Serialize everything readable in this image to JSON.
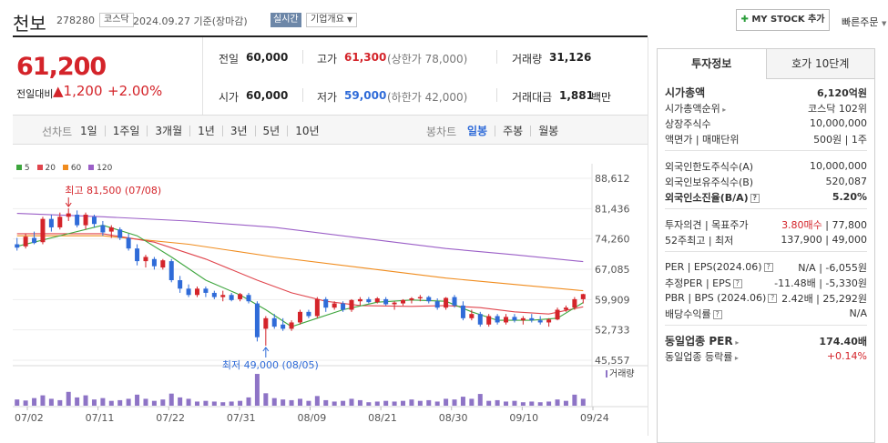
{
  "header": {
    "name": "천보",
    "code": "278280",
    "market_badge": "코스닥",
    "date_text": "2024.09.27  기준(장마감)",
    "live_badge": "실시간",
    "company_info": "기업개요",
    "mystock_label": "MY STOCK 추가",
    "quick_order": "빠른주문"
  },
  "price": {
    "current": "61,200",
    "diff_label": "전일대비",
    "diff_value": "1,200",
    "diff_pct": "+2.00%"
  },
  "summary": {
    "prev_label": "전일",
    "prev_value": "60,000",
    "high_label": "고가",
    "high_value": "61,300",
    "high_limit": "(상한가 78,000)",
    "volume_label": "거래량",
    "volume_value": "31,126",
    "open_label": "시가",
    "open_value": "60,000",
    "low_label": "저가",
    "low_value": "59,000",
    "low_limit": "(하한가 42,000)",
    "amount_label": "거래대금",
    "amount_value": "1,881",
    "amount_unit": "백만"
  },
  "period_tabs": {
    "line_label": "선차트",
    "items": [
      "1일",
      "1주일",
      "3개월",
      "1년",
      "3년",
      "5년",
      "10년"
    ],
    "candle_label": "봉차트",
    "candle_items": [
      "일봉",
      "주봉",
      "월봉"
    ],
    "candle_active": "일봉"
  },
  "legend": [
    "5",
    "20",
    "60",
    "120"
  ],
  "colors": {
    "up": "#d4242a",
    "down": "#2f6bd8",
    "ma5": "#3da53d",
    "ma20": "#e0454d",
    "ma60": "#f08c1e",
    "ma120": "#9b5fc7",
    "volume": "#8e74c6"
  },
  "chart_data": {
    "type": "candlestick",
    "y_ticks": [
      "88,612",
      "81,436",
      "74,260",
      "67,085",
      "59,909",
      "52,733",
      "45,557"
    ],
    "ylim": [
      45557,
      88612
    ],
    "x_ticks": [
      "07/02",
      "07/11",
      "07/22",
      "07/31",
      "08/09",
      "08/21",
      "08/30",
      "09/10",
      "09/24"
    ],
    "volume_label": "거래량",
    "high_annotation": "최고 81,500 (07/08)",
    "low_annotation": "최저 49,000 (08/05)",
    "candles": [
      {
        "o": 73000,
        "h": 74500,
        "l": 71500,
        "c": 72200
      },
      {
        "o": 72500,
        "h": 75500,
        "l": 72000,
        "c": 74800
      },
      {
        "o": 74500,
        "h": 76000,
        "l": 73000,
        "c": 73300
      },
      {
        "o": 73500,
        "h": 79500,
        "l": 73000,
        "c": 79000
      },
      {
        "o": 79000,
        "h": 80000,
        "l": 76000,
        "c": 77000
      },
      {
        "o": 77000,
        "h": 80500,
        "l": 76500,
        "c": 79500
      },
      {
        "o": 79500,
        "h": 81500,
        "l": 78500,
        "c": 80300
      },
      {
        "o": 80000,
        "h": 81000,
        "l": 77000,
        "c": 77500
      },
      {
        "o": 77500,
        "h": 80500,
        "l": 76500,
        "c": 80000
      },
      {
        "o": 79500,
        "h": 80000,
        "l": 77000,
        "c": 77800
      },
      {
        "o": 77500,
        "h": 78500,
        "l": 75000,
        "c": 75800
      },
      {
        "o": 76000,
        "h": 77500,
        "l": 74500,
        "c": 77000
      },
      {
        "o": 76500,
        "h": 77000,
        "l": 74000,
        "c": 74500
      },
      {
        "o": 74500,
        "h": 75500,
        "l": 71500,
        "c": 72000
      },
      {
        "o": 72000,
        "h": 73000,
        "l": 68000,
        "c": 69000
      },
      {
        "o": 69000,
        "h": 70500,
        "l": 67500,
        "c": 70000
      },
      {
        "o": 69500,
        "h": 70000,
        "l": 67000,
        "c": 67800
      },
      {
        "o": 67500,
        "h": 69500,
        "l": 67000,
        "c": 69200
      },
      {
        "o": 69000,
        "h": 69500,
        "l": 64000,
        "c": 64500
      },
      {
        "o": 64500,
        "h": 65500,
        "l": 61500,
        "c": 62500
      },
      {
        "o": 62500,
        "h": 63500,
        "l": 60500,
        "c": 61000
      },
      {
        "o": 61000,
        "h": 63000,
        "l": 60500,
        "c": 62500
      },
      {
        "o": 62500,
        "h": 63000,
        "l": 60500,
        "c": 61500
      },
      {
        "o": 61500,
        "h": 62000,
        "l": 60000,
        "c": 60500
      },
      {
        "o": 60500,
        "h": 62000,
        "l": 59500,
        "c": 61000
      },
      {
        "o": 61000,
        "h": 61500,
        "l": 59500,
        "c": 59800
      },
      {
        "o": 60000,
        "h": 61500,
        "l": 59500,
        "c": 61200
      },
      {
        "o": 61000,
        "h": 61500,
        "l": 59000,
        "c": 59500
      },
      {
        "o": 59000,
        "h": 59500,
        "l": 50000,
        "c": 51000
      },
      {
        "o": 53000,
        "h": 56000,
        "l": 49000,
        "c": 55500
      },
      {
        "o": 55500,
        "h": 56500,
        "l": 53000,
        "c": 53500
      },
      {
        "o": 54000,
        "h": 55500,
        "l": 52500,
        "c": 53000
      },
      {
        "o": 53000,
        "h": 55000,
        "l": 52500,
        "c": 54500
      },
      {
        "o": 54500,
        "h": 57500,
        "l": 54000,
        "c": 57000
      },
      {
        "o": 57000,
        "h": 57500,
        "l": 55500,
        "c": 56000
      },
      {
        "o": 56000,
        "h": 60500,
        "l": 55500,
        "c": 60000
      },
      {
        "o": 60000,
        "h": 60500,
        "l": 57000,
        "c": 58000
      },
      {
        "o": 58000,
        "h": 59500,
        "l": 57500,
        "c": 59000
      },
      {
        "o": 59000,
        "h": 59500,
        "l": 57000,
        "c": 57500
      },
      {
        "o": 57500,
        "h": 60000,
        "l": 57000,
        "c": 59800
      },
      {
        "o": 59500,
        "h": 60500,
        "l": 58500,
        "c": 60000
      },
      {
        "o": 60000,
        "h": 60500,
        "l": 59000,
        "c": 59300
      },
      {
        "o": 59300,
        "h": 60500,
        "l": 59000,
        "c": 60200
      },
      {
        "o": 60000,
        "h": 60500,
        "l": 58500,
        "c": 58800
      },
      {
        "o": 58800,
        "h": 59500,
        "l": 57500,
        "c": 59200
      },
      {
        "o": 59000,
        "h": 60000,
        "l": 58500,
        "c": 59800
      },
      {
        "o": 59800,
        "h": 60500,
        "l": 59000,
        "c": 60200
      },
      {
        "o": 60200,
        "h": 61000,
        "l": 59500,
        "c": 60500
      },
      {
        "o": 60500,
        "h": 60800,
        "l": 59000,
        "c": 59500
      },
      {
        "o": 59500,
        "h": 60200,
        "l": 57500,
        "c": 58000
      },
      {
        "o": 58000,
        "h": 60500,
        "l": 57500,
        "c": 60300
      },
      {
        "o": 60500,
        "h": 61000,
        "l": 58000,
        "c": 58500
      },
      {
        "o": 58500,
        "h": 59500,
        "l": 55000,
        "c": 55500
      },
      {
        "o": 55500,
        "h": 57500,
        "l": 55000,
        "c": 56500
      },
      {
        "o": 56500,
        "h": 57000,
        "l": 53500,
        "c": 54000
      },
      {
        "o": 54000,
        "h": 56500,
        "l": 53500,
        "c": 56000
      },
      {
        "o": 56000,
        "h": 56500,
        "l": 54000,
        "c": 54500
      },
      {
        "o": 54500,
        "h": 56500,
        "l": 54000,
        "c": 55800
      },
      {
        "o": 55800,
        "h": 56500,
        "l": 54500,
        "c": 55000
      },
      {
        "o": 55000,
        "h": 56000,
        "l": 54000,
        "c": 55500
      },
      {
        "o": 55500,
        "h": 56500,
        "l": 54500,
        "c": 55000
      },
      {
        "o": 55000,
        "h": 56000,
        "l": 54000,
        "c": 54500
      },
      {
        "o": 54500,
        "h": 55500,
        "l": 53500,
        "c": 55200
      },
      {
        "o": 55200,
        "h": 58000,
        "l": 55000,
        "c": 57500
      },
      {
        "o": 57500,
        "h": 58500,
        "l": 57000,
        "c": 58000
      },
      {
        "o": 58000,
        "h": 60500,
        "l": 57500,
        "c": 60000
      },
      {
        "o": 60000,
        "h": 61300,
        "l": 59000,
        "c": 61200
      }
    ],
    "volumes": [
      0.18,
      0.15,
      0.22,
      0.3,
      0.2,
      0.16,
      0.4,
      0.24,
      0.3,
      0.18,
      0.22,
      0.14,
      0.16,
      0.2,
      0.32,
      0.2,
      0.14,
      0.18,
      0.35,
      0.24,
      0.2,
      0.12,
      0.14,
      0.12,
      0.1,
      0.12,
      0.14,
      0.24,
      0.92,
      0.36,
      0.22,
      0.18,
      0.16,
      0.2,
      0.14,
      0.28,
      0.16,
      0.12,
      0.14,
      0.2,
      0.16,
      0.1,
      0.12,
      0.14,
      0.12,
      0.14,
      0.18,
      0.14,
      0.16,
      0.12,
      0.2,
      0.18,
      0.26,
      0.2,
      0.34,
      0.14,
      0.16,
      0.12,
      0.14,
      0.1,
      0.12,
      0.1,
      0.12,
      0.18,
      0.14,
      0.32,
      0.2
    ],
    "ma5": [
      [
        0,
        72500
      ],
      [
        6,
        75500
      ],
      [
        10,
        77500
      ],
      [
        14,
        75000
      ],
      [
        18,
        70000
      ],
      [
        22,
        64500
      ],
      [
        26,
        61000
      ],
      [
        29,
        57500
      ],
      [
        32,
        53500
      ],
      [
        35,
        55500
      ],
      [
        38,
        57500
      ],
      [
        42,
        59300
      ],
      [
        46,
        59800
      ],
      [
        50,
        59500
      ],
      [
        53,
        57000
      ],
      [
        56,
        55000
      ],
      [
        60,
        55000
      ],
      [
        63,
        55500
      ],
      [
        66,
        59200
      ]
    ],
    "ma20": [
      [
        0,
        75500
      ],
      [
        10,
        75500
      ],
      [
        16,
        73500
      ],
      [
        22,
        69500
      ],
      [
        28,
        64500
      ],
      [
        32,
        61500
      ],
      [
        36,
        59500
      ],
      [
        40,
        58500
      ],
      [
        46,
        58300
      ],
      [
        50,
        58500
      ],
      [
        54,
        58000
      ],
      [
        58,
        57000
      ],
      [
        62,
        56500
      ],
      [
        66,
        58200
      ]
    ],
    "ma60": [
      [
        0,
        75000
      ],
      [
        10,
        75000
      ],
      [
        20,
        73000
      ],
      [
        30,
        70000
      ],
      [
        40,
        67500
      ],
      [
        50,
        65000
      ],
      [
        58,
        63500
      ],
      [
        66,
        62000
      ]
    ],
    "ma120": [
      [
        0,
        80300
      ],
      [
        10,
        79500
      ],
      [
        20,
        78500
      ],
      [
        30,
        77000
      ],
      [
        40,
        74500
      ],
      [
        50,
        72000
      ],
      [
        58,
        70500
      ],
      [
        66,
        68900
      ]
    ]
  },
  "right_panel": {
    "tab_invest": "투자정보",
    "tab_quote": "호가 10단계",
    "market_cap_label": "시가총액",
    "market_cap_value": "6,120억원",
    "rank_label": "시가총액순위",
    "rank_value": "코스닥 102위",
    "shares_label": "상장주식수",
    "shares_value": "10,000,000",
    "face_label": "액면가 | 매매단위",
    "face_value": "500원 | 1주",
    "foreign_limit_label": "외국인한도주식수(A)",
    "foreign_limit_value": "10,000,000",
    "foreign_hold_label": "외국인보유주식수(B)",
    "foreign_hold_value": "520,087",
    "foreign_rate_label": "외국인소진율(B/A)",
    "foreign_rate_value": "5.20%",
    "opinion_label": "투자의견 | 목표주가",
    "opinion_value": "3.80매수",
    "target_value": "77,800",
    "week52_label": "52주최고 | 최저",
    "week52_value": "137,900 | 49,000",
    "per_label": "PER | EPS(2024.06)",
    "per_value": "N/A | -6,055원",
    "eper_label": "추정PER | EPS",
    "eper_value": "-11.48배 | -5,330원",
    "pbr_label": "PBR | BPS (2024.06)",
    "pbr_value": "2.42배 | 25,292원",
    "div_label": "배당수익률",
    "div_value": "N/A",
    "sector_per_label": "동일업종 PER",
    "sector_per_value": "174.40배",
    "sector_rate_label": "동일업종 등락률",
    "sector_rate_value": "+0.14%"
  }
}
